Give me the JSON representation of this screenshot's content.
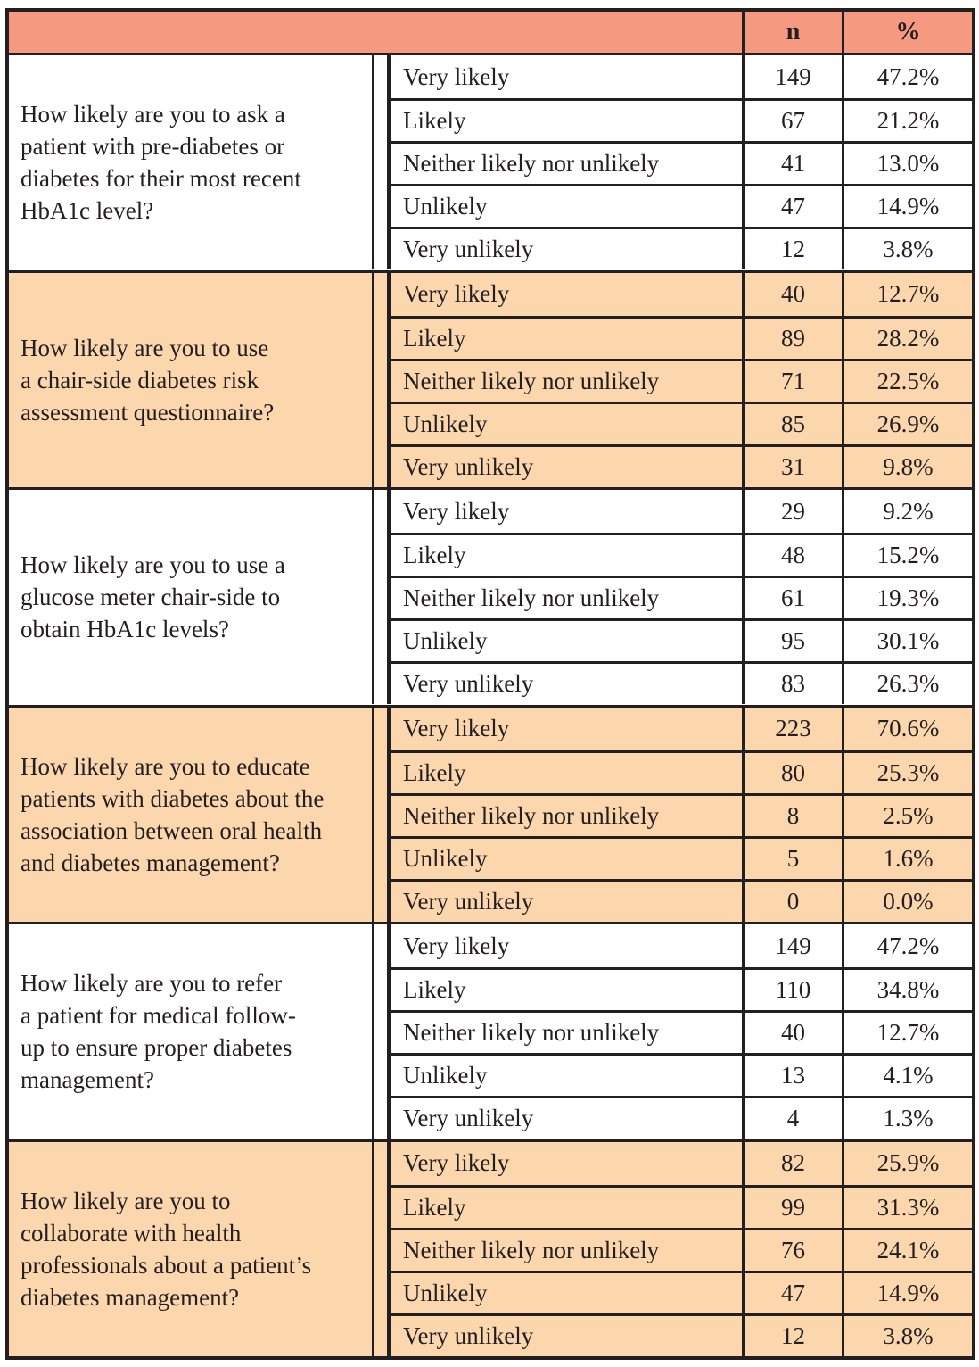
{
  "colors": {
    "header_bg": "#f59980",
    "alt_section_bg": "#fcd7ae",
    "section_bg": "#ffffff",
    "border_and_text": "#231f20"
  },
  "table": {
    "headers": {
      "n": "n",
      "percent": "%"
    },
    "response_options": [
      "Very likely",
      "Likely",
      "Neither likely nor unlikely",
      "Unlikely",
      "Very unlikely"
    ],
    "sections": [
      {
        "question": "How likely are you to ask a\npatient with pre-diabetes or\ndiabetes for their most recent\nHbA1c level?",
        "rows": [
          {
            "label": "Very likely",
            "n": "149",
            "pct": "47.2%"
          },
          {
            "label": "Likely",
            "n": "67",
            "pct": "21.2%"
          },
          {
            "label": "Neither likely nor unlikely",
            "n": "41",
            "pct": "13.0%"
          },
          {
            "label": "Unlikely",
            "n": "47",
            "pct": "14.9%"
          },
          {
            "label": "Very unlikely",
            "n": "12",
            "pct": "3.8%"
          }
        ]
      },
      {
        "question": "How likely are you to use\na chair-side diabetes risk\nassessment questionnaire?",
        "rows": [
          {
            "label": "Very likely",
            "n": "40",
            "pct": "12.7%"
          },
          {
            "label": "Likely",
            "n": "89",
            "pct": "28.2%"
          },
          {
            "label": "Neither likely nor unlikely",
            "n": "71",
            "pct": "22.5%"
          },
          {
            "label": "Unlikely",
            "n": "85",
            "pct": "26.9%"
          },
          {
            "label": "Very unlikely",
            "n": "31",
            "pct": "9.8%"
          }
        ]
      },
      {
        "question": "How likely are you to use a\nglucose meter chair-side to\nobtain HbA1c levels?",
        "rows": [
          {
            "label": "Very likely",
            "n": "29",
            "pct": "9.2%"
          },
          {
            "label": "Likely",
            "n": "48",
            "pct": "15.2%"
          },
          {
            "label": "Neither likely nor unlikely",
            "n": "61",
            "pct": "19.3%"
          },
          {
            "label": "Unlikely",
            "n": "95",
            "pct": "30.1%"
          },
          {
            "label": "Very unlikely",
            "n": "83",
            "pct": "26.3%"
          }
        ]
      },
      {
        "question": "How likely are you to educate\npatients with diabetes about the\nassociation between oral health\nand diabetes management?",
        "rows": [
          {
            "label": "Very likely",
            "n": "223",
            "pct": "70.6%"
          },
          {
            "label": "Likely",
            "n": "80",
            "pct": "25.3%"
          },
          {
            "label": "Neither likely nor unlikely",
            "n": "8",
            "pct": "2.5%"
          },
          {
            "label": "Unlikely",
            "n": "5",
            "pct": "1.6%"
          },
          {
            "label": "Very unlikely",
            "n": "0",
            "pct": "0.0%"
          }
        ]
      },
      {
        "question": "How likely are you to refer\na patient for medical follow-\nup to ensure proper diabetes\nmanagement?",
        "rows": [
          {
            "label": "Very likely",
            "n": "149",
            "pct": "47.2%"
          },
          {
            "label": "Likely",
            "n": "110",
            "pct": "34.8%"
          },
          {
            "label": "Neither likely nor unlikely",
            "n": "40",
            "pct": "12.7%"
          },
          {
            "label": "Unlikely",
            "n": "13",
            "pct": "4.1%"
          },
          {
            "label": "Very unlikely",
            "n": "4",
            "pct": "1.3%"
          }
        ]
      },
      {
        "question": "How likely are you to\ncollaborate with health\nprofessionals about a patient’s\ndiabetes management?",
        "rows": [
          {
            "label": "Very likely",
            "n": "82",
            "pct": "25.9%"
          },
          {
            "label": "Likely",
            "n": "99",
            "pct": "31.3%"
          },
          {
            "label": "Neither likely nor unlikely",
            "n": "76",
            "pct": "24.1%"
          },
          {
            "label": "Unlikely",
            "n": "47",
            "pct": "14.9%"
          },
          {
            "label": "Very unlikely",
            "n": "12",
            "pct": "3.8%"
          }
        ]
      }
    ]
  }
}
